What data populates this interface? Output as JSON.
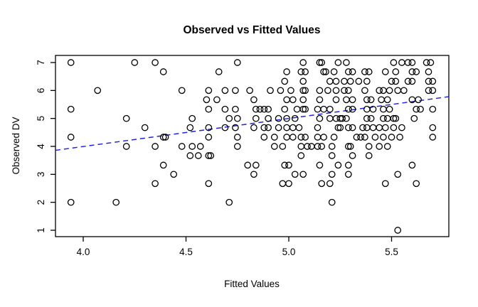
{
  "chart_data": {
    "type": "scatter",
    "title": "Observed vs Fitted Values",
    "xlabel": "Fitted Values",
    "ylabel": "Observed DV",
    "xlim": [
      3.86,
      5.78
    ],
    "ylim": [
      0.76,
      7.24
    ],
    "grid": false,
    "x_ticks": {
      "values": [
        4.0,
        4.5,
        5.0,
        5.5
      ],
      "labels": [
        "4.0",
        "4.5",
        "5.0",
        "5.5"
      ]
    },
    "y_ticks": {
      "values": [
        1,
        2,
        3,
        4,
        5,
        6,
        7
      ],
      "labels": [
        "1",
        "2",
        "3",
        "4",
        "5",
        "6",
        "7"
      ]
    },
    "point_style": {
      "marker": "open-circle",
      "color": "#000000"
    },
    "reference_line": {
      "kind": "identity",
      "x1": 3.86,
      "y1": 3.86,
      "x2": 5.78,
      "y2": 5.78,
      "color": "#2222dd",
      "dashed": true
    },
    "points": [
      [
        3.94,
        7
      ],
      [
        4.25,
        7
      ],
      [
        4.35,
        7
      ],
      [
        4.75,
        7
      ],
      [
        5.07,
        7
      ],
      [
        5.15,
        7
      ],
      [
        5.16,
        7
      ],
      [
        5.24,
        7
      ],
      [
        5.28,
        7
      ],
      [
        5.51,
        7
      ],
      [
        5.55,
        7
      ],
      [
        5.58,
        7
      ],
      [
        5.6,
        7
      ],
      [
        5.67,
        7
      ],
      [
        5.69,
        7
      ],
      [
        4.39,
        6.67
      ],
      [
        4.66,
        6.67
      ],
      [
        4.99,
        6.67
      ],
      [
        5.06,
        6.67
      ],
      [
        5.08,
        6.67
      ],
      [
        5.17,
        6.67
      ],
      [
        5.18,
        6.67
      ],
      [
        5.22,
        6.67
      ],
      [
        5.29,
        6.67
      ],
      [
        5.31,
        6.67
      ],
      [
        5.37,
        6.67
      ],
      [
        5.39,
        6.67
      ],
      [
        5.47,
        6.67
      ],
      [
        5.52,
        6.67
      ],
      [
        5.6,
        6.67
      ],
      [
        5.62,
        6.67
      ],
      [
        5.68,
        6.67
      ],
      [
        4.98,
        6.33
      ],
      [
        5.07,
        6.33
      ],
      [
        5.2,
        6.33
      ],
      [
        5.23,
        6.33
      ],
      [
        5.27,
        6.33
      ],
      [
        5.3,
        6.33
      ],
      [
        5.34,
        6.33
      ],
      [
        5.38,
        6.33
      ],
      [
        5.5,
        6.33
      ],
      [
        5.52,
        6.33
      ],
      [
        5.58,
        6.33
      ],
      [
        5.6,
        6.33
      ],
      [
        5.68,
        6.33
      ],
      [
        5.7,
        6.33
      ],
      [
        4.07,
        6
      ],
      [
        4.48,
        6
      ],
      [
        4.61,
        6
      ],
      [
        4.69,
        6
      ],
      [
        4.74,
        6
      ],
      [
        4.81,
        6
      ],
      [
        4.91,
        6
      ],
      [
        4.96,
        6
      ],
      [
        5.01,
        6
      ],
      [
        5.07,
        6
      ],
      [
        5.08,
        6
      ],
      [
        5.15,
        6
      ],
      [
        5.19,
        6
      ],
      [
        5.23,
        6
      ],
      [
        5.27,
        6
      ],
      [
        5.29,
        6
      ],
      [
        5.37,
        6
      ],
      [
        5.44,
        6
      ],
      [
        5.46,
        6
      ],
      [
        5.49,
        6
      ],
      [
        5.53,
        6
      ],
      [
        5.56,
        6
      ],
      [
        5.68,
        6
      ],
      [
        5.7,
        6
      ],
      [
        4.6,
        5.67
      ],
      [
        4.65,
        5.67
      ],
      [
        4.83,
        5.67
      ],
      [
        4.99,
        5.67
      ],
      [
        5.02,
        5.67
      ],
      [
        5.07,
        5.67
      ],
      [
        5.15,
        5.67
      ],
      [
        5.23,
        5.67
      ],
      [
        5.28,
        5.67
      ],
      [
        5.31,
        5.67
      ],
      [
        5.38,
        5.67
      ],
      [
        5.4,
        5.67
      ],
      [
        5.45,
        5.67
      ],
      [
        5.48,
        5.67
      ],
      [
        5.6,
        5.67
      ],
      [
        5.63,
        5.67
      ],
      [
        3.94,
        5.33
      ],
      [
        4.61,
        5.33
      ],
      [
        4.69,
        5.33
      ],
      [
        4.74,
        5.33
      ],
      [
        4.84,
        5.33
      ],
      [
        4.86,
        5.33
      ],
      [
        4.88,
        5.33
      ],
      [
        4.9,
        5.33
      ],
      [
        4.98,
        5.33
      ],
      [
        5.04,
        5.33
      ],
      [
        5.07,
        5.33
      ],
      [
        5.08,
        5.33
      ],
      [
        5.14,
        5.33
      ],
      [
        5.17,
        5.33
      ],
      [
        5.2,
        5.33
      ],
      [
        5.29,
        5.33
      ],
      [
        5.31,
        5.33
      ],
      [
        5.38,
        5.33
      ],
      [
        5.41,
        5.33
      ],
      [
        5.46,
        5.33
      ],
      [
        5.49,
        5.33
      ],
      [
        5.62,
        5.33
      ],
      [
        5.64,
        5.33
      ],
      [
        5.7,
        5.33
      ],
      [
        4.21,
        5
      ],
      [
        4.53,
        5
      ],
      [
        4.71,
        5
      ],
      [
        4.75,
        5
      ],
      [
        4.84,
        5
      ],
      [
        4.9,
        5
      ],
      [
        4.95,
        5
      ],
      [
        4.99,
        5
      ],
      [
        5.03,
        5
      ],
      [
        5.15,
        5
      ],
      [
        5.2,
        5
      ],
      [
        5.23,
        5
      ],
      [
        5.25,
        5
      ],
      [
        5.26,
        5
      ],
      [
        5.28,
        5
      ],
      [
        5.38,
        5
      ],
      [
        5.4,
        5
      ],
      [
        5.46,
        5
      ],
      [
        5.48,
        5
      ],
      [
        5.51,
        5
      ],
      [
        5.52,
        5
      ],
      [
        5.61,
        5
      ],
      [
        4.3,
        4.67
      ],
      [
        4.52,
        4.67
      ],
      [
        4.61,
        4.67
      ],
      [
        4.69,
        4.67
      ],
      [
        4.74,
        4.67
      ],
      [
        4.83,
        4.67
      ],
      [
        4.88,
        4.67
      ],
      [
        4.9,
        4.67
      ],
      [
        4.95,
        4.67
      ],
      [
        4.99,
        4.67
      ],
      [
        5.02,
        4.67
      ],
      [
        5.05,
        4.67
      ],
      [
        5.14,
        4.67
      ],
      [
        5.24,
        4.67
      ],
      [
        5.25,
        4.67
      ],
      [
        5.29,
        4.67
      ],
      [
        5.31,
        4.67
      ],
      [
        5.36,
        4.67
      ],
      [
        5.38,
        4.67
      ],
      [
        5.41,
        4.67
      ],
      [
        5.44,
        4.67
      ],
      [
        5.47,
        4.67
      ],
      [
        5.51,
        4.67
      ],
      [
        5.55,
        4.67
      ],
      [
        5.7,
        4.67
      ],
      [
        3.94,
        4.33
      ],
      [
        4.39,
        4.33
      ],
      [
        4.4,
        4.33
      ],
      [
        4.61,
        4.33
      ],
      [
        4.75,
        4.33
      ],
      [
        4.88,
        4.33
      ],
      [
        4.93,
        4.33
      ],
      [
        4.99,
        4.33
      ],
      [
        5.02,
        4.33
      ],
      [
        5.06,
        4.33
      ],
      [
        5.08,
        4.33
      ],
      [
        5.14,
        4.33
      ],
      [
        5.17,
        4.33
      ],
      [
        5.22,
        4.33
      ],
      [
        5.33,
        4.33
      ],
      [
        5.35,
        4.33
      ],
      [
        5.37,
        4.33
      ],
      [
        5.42,
        4.33
      ],
      [
        5.46,
        4.33
      ],
      [
        5.5,
        4.33
      ],
      [
        5.54,
        4.33
      ],
      [
        5.7,
        4.33
      ],
      [
        4.21,
        4
      ],
      [
        4.35,
        4
      ],
      [
        4.48,
        4
      ],
      [
        4.53,
        4
      ],
      [
        4.57,
        4
      ],
      [
        4.75,
        4
      ],
      [
        4.93,
        4
      ],
      [
        4.97,
        4
      ],
      [
        5.06,
        4
      ],
      [
        5.09,
        4
      ],
      [
        5.11,
        4
      ],
      [
        5.14,
        4
      ],
      [
        5.16,
        4
      ],
      [
        5.21,
        4
      ],
      [
        5.29,
        4
      ],
      [
        5.3,
        4
      ],
      [
        5.39,
        4
      ],
      [
        5.44,
        4
      ],
      [
        5.48,
        4
      ],
      [
        4.52,
        3.67
      ],
      [
        4.56,
        3.67
      ],
      [
        4.61,
        3.67
      ],
      [
        4.62,
        3.67
      ],
      [
        5.06,
        3.67
      ],
      [
        5.21,
        3.67
      ],
      [
        5.31,
        3.67
      ],
      [
        5.39,
        3.67
      ],
      [
        4.39,
        3.33
      ],
      [
        4.8,
        3.33
      ],
      [
        4.84,
        3.33
      ],
      [
        4.98,
        3.33
      ],
      [
        5.0,
        3.33
      ],
      [
        5.15,
        3.33
      ],
      [
        5.24,
        3.33
      ],
      [
        5.29,
        3.33
      ],
      [
        5.6,
        3.33
      ],
      [
        4.44,
        3
      ],
      [
        4.83,
        3
      ],
      [
        5.03,
        3
      ],
      [
        5.07,
        3
      ],
      [
        5.21,
        3
      ],
      [
        5.29,
        3
      ],
      [
        5.53,
        3
      ],
      [
        4.35,
        2.67
      ],
      [
        4.61,
        2.67
      ],
      [
        4.97,
        2.67
      ],
      [
        5.0,
        2.67
      ],
      [
        5.16,
        2.67
      ],
      [
        5.2,
        2.67
      ],
      [
        5.47,
        2.67
      ],
      [
        5.62,
        2.67
      ],
      [
        3.94,
        2
      ],
      [
        4.16,
        2
      ],
      [
        4.71,
        2
      ],
      [
        5.21,
        2
      ],
      [
        5.53,
        1
      ]
    ]
  }
}
